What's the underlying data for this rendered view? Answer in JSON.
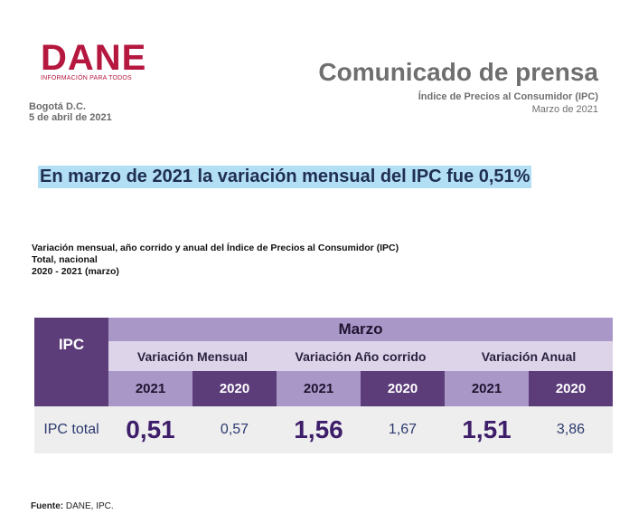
{
  "logo": {
    "word": "DANE",
    "tagline": "INFORMACIÓN PARA TODOS"
  },
  "header": {
    "city": "Bogotá D.C.",
    "date": "5 de abril de 2021",
    "title": "Comunicado de prensa",
    "subtitle": "Índice de Precios al Consumidor (IPC)",
    "period": "Marzo de 2021"
  },
  "headline": "En marzo de 2021 la variación mensual del IPC fue 0,51%",
  "caption": {
    "line1": "Variación mensual, año corrido y anual del Índice de Precios al Consumidor (IPC)",
    "line2": "Total, nacional",
    "line3": "2020 - 2021 (marzo)"
  },
  "table": {
    "corner": "IPC",
    "month": "Marzo",
    "groups": [
      "Variación Mensual",
      "Variación Año corrido",
      "Variación Anual"
    ],
    "years": [
      "2021",
      "2020",
      "2021",
      "2020",
      "2021",
      "2020"
    ],
    "row_label": "IPC total",
    "values": [
      "0,51",
      "0,57",
      "1,56",
      "1,67",
      "1,51",
      "3,86"
    ]
  },
  "source": {
    "label": "Fuente:",
    "text": "DANE, IPC."
  }
}
